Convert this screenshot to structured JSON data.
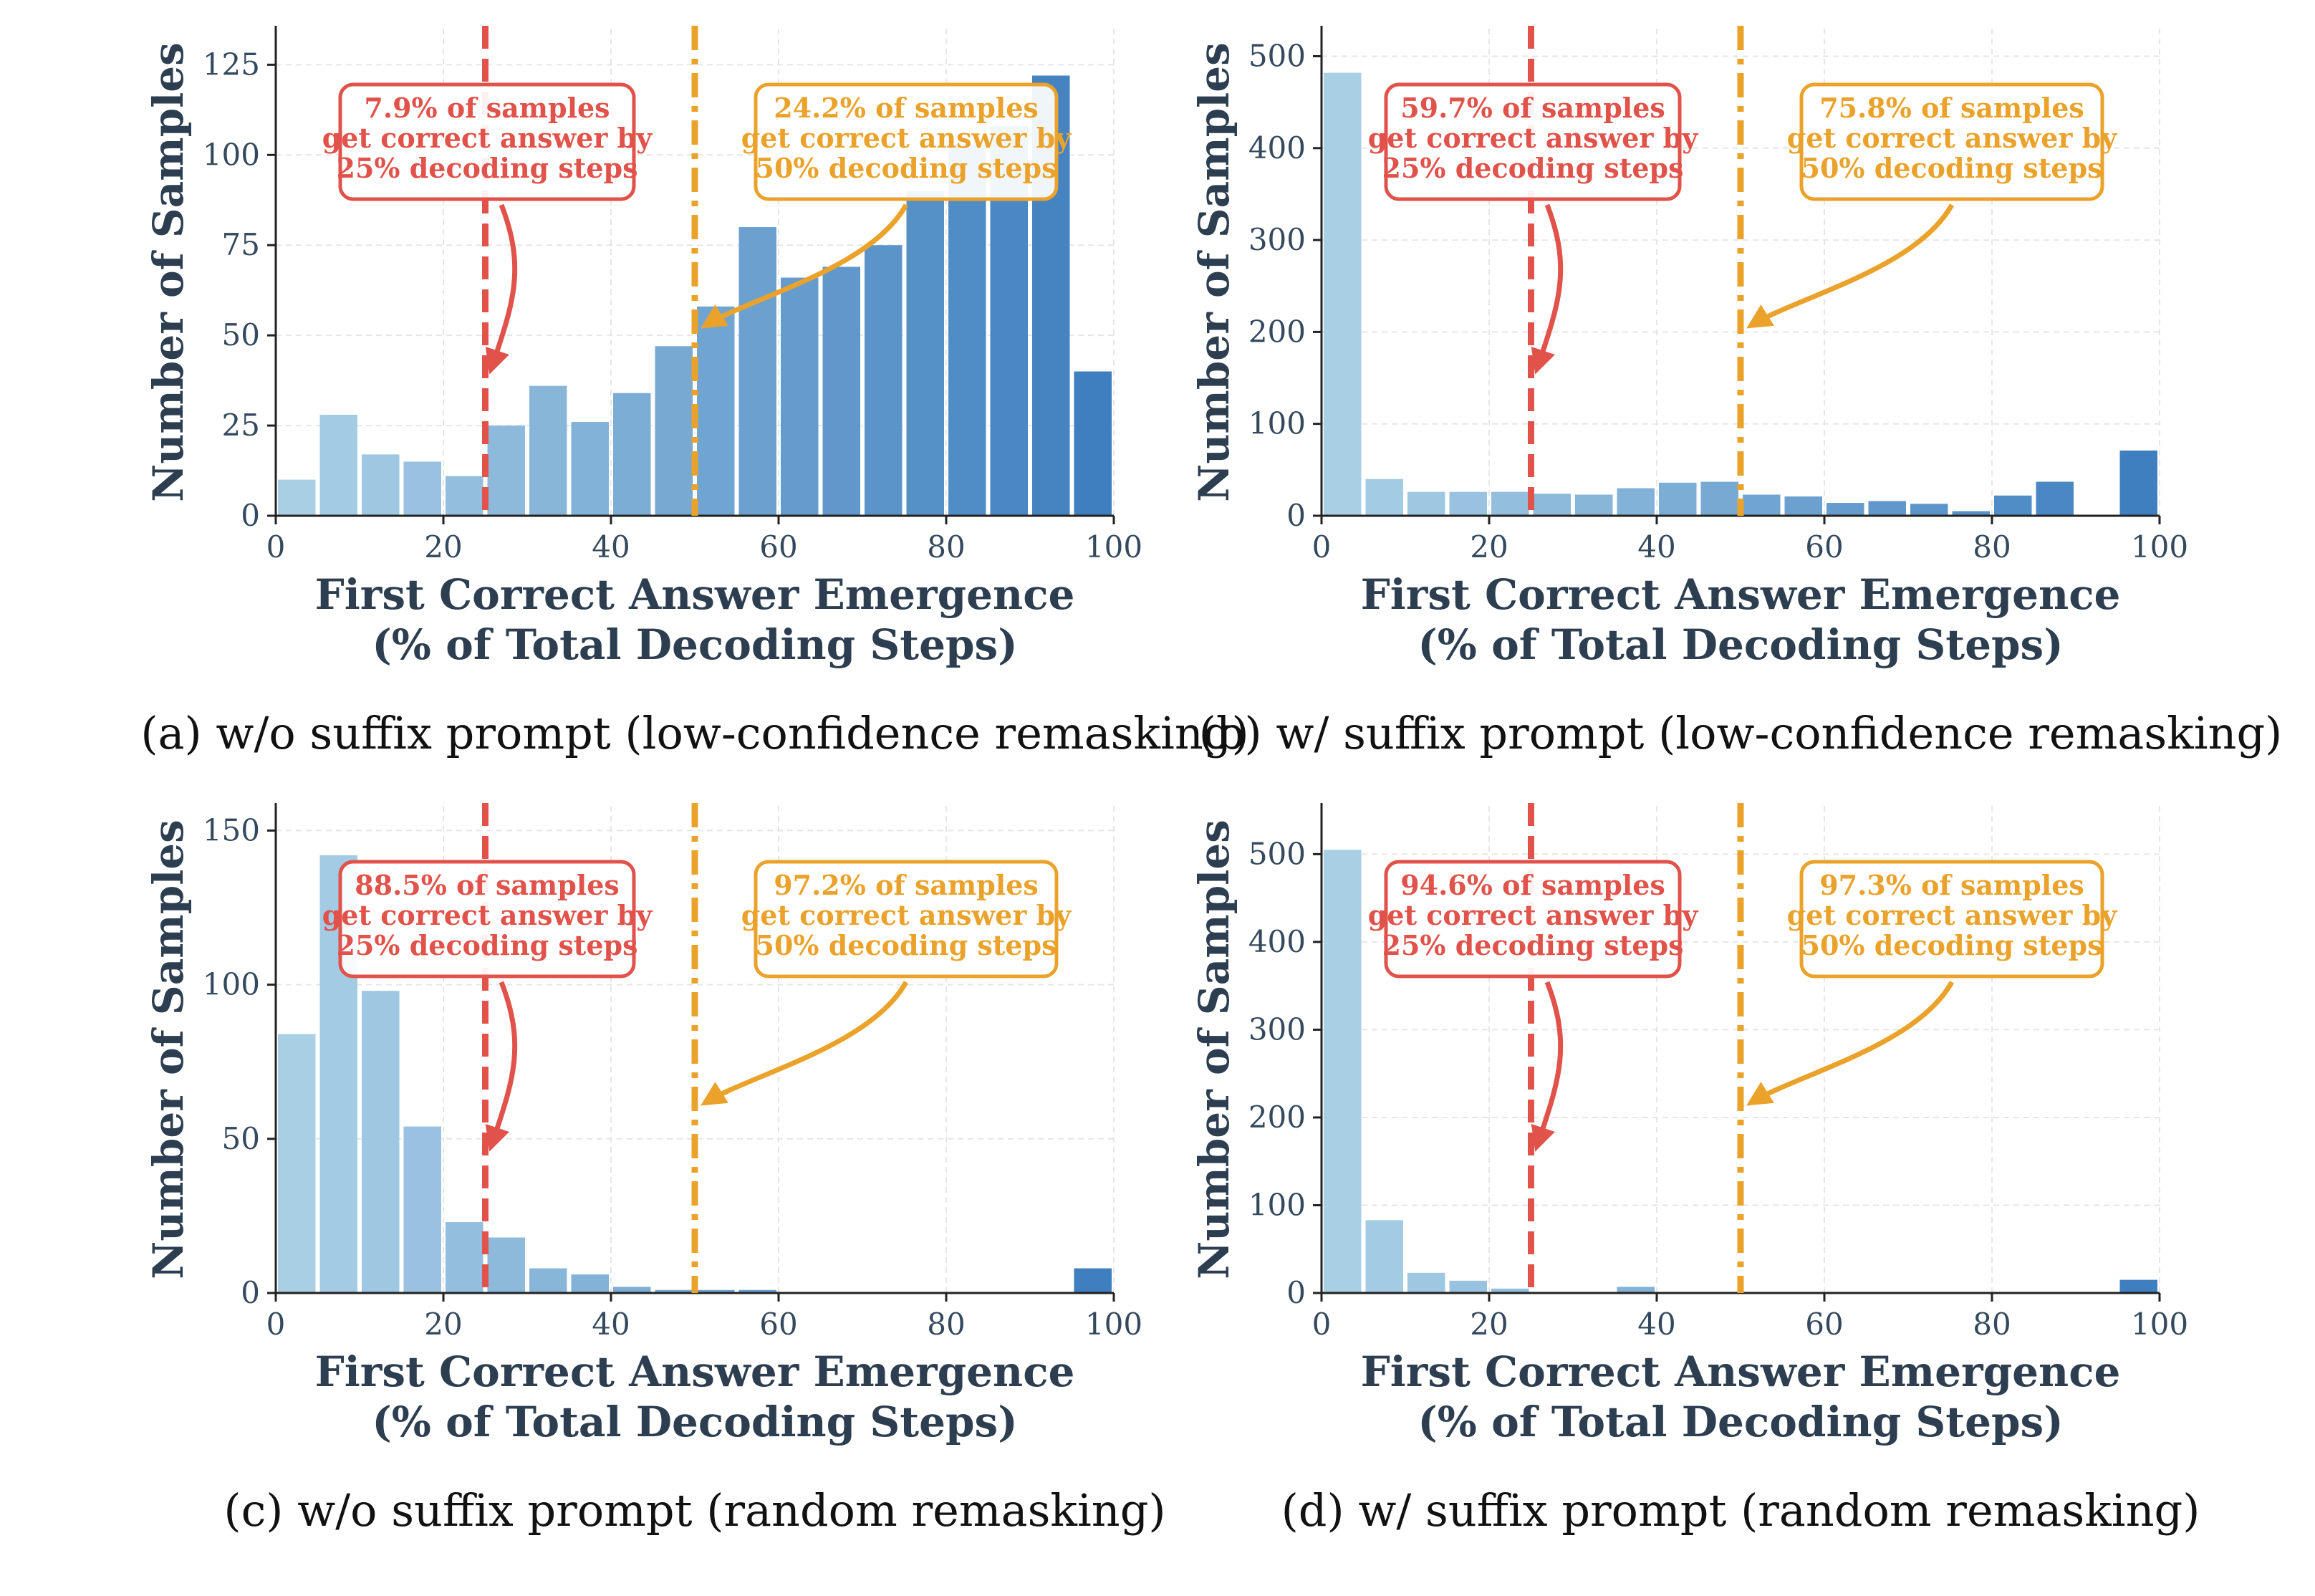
{
  "colors": {
    "marker25": "#e0524a",
    "marker50": "#eaa22b",
    "axis": "#222222",
    "grid": "#e6e6e6",
    "text": "#2c3e50",
    "bar_light": "#a9cfe5",
    "bar_dark": "#3f7fbf"
  },
  "chart_data": [
    {
      "type": "bar",
      "caption": "(a) w/o suffix prompt (low-confidence remasking)",
      "xlabel": [
        "First Correct Answer Emergence",
        "(% of Total Decoding Steps)"
      ],
      "ylabel": "Number of Samples",
      "xlim": [
        0,
        100
      ],
      "ylim": [
        0,
        135
      ],
      "xticks": [
        0,
        20,
        40,
        60,
        80,
        100
      ],
      "yticks": [
        0,
        25,
        50,
        75,
        100,
        125
      ],
      "grid": true,
      "bin_width": 5,
      "bins": [
        0,
        5,
        10,
        15,
        20,
        25,
        30,
        35,
        40,
        45,
        50,
        55,
        60,
        65,
        70,
        75,
        80,
        85,
        90,
        95
      ],
      "values": [
        10,
        28,
        17,
        15,
        11,
        25,
        36,
        26,
        34,
        47,
        58,
        80,
        66,
        69,
        75,
        90,
        103,
        108,
        122,
        40
      ],
      "markers": [
        {
          "x": 25,
          "style": "dashed",
          "color_key": "marker25",
          "annotation": [
            "7.9% of samples",
            "get correct answer by",
            "25% decoding steps"
          ]
        },
        {
          "x": 50,
          "style": "dashdot",
          "color_key": "marker50",
          "annotation": [
            "24.2% of samples",
            "get correct answer by",
            "50% decoding steps"
          ]
        }
      ]
    },
    {
      "type": "bar",
      "caption": "(b) w/ suffix prompt (low-confidence remasking)",
      "xlabel": [
        "First Correct Answer Emergence",
        "(% of Total Decoding Steps)"
      ],
      "ylabel": "Number of Samples",
      "xlim": [
        0,
        100
      ],
      "ylim": [
        0,
        530
      ],
      "xticks": [
        0,
        20,
        40,
        60,
        80,
        100
      ],
      "yticks": [
        0,
        100,
        200,
        300,
        400,
        500
      ],
      "grid": true,
      "bin_width": 5,
      "bins": [
        0,
        5,
        10,
        15,
        20,
        25,
        30,
        35,
        40,
        45,
        50,
        55,
        60,
        65,
        70,
        75,
        80,
        85,
        90,
        95
      ],
      "values": [
        482,
        40,
        26,
        26,
        26,
        24,
        23,
        30,
        36,
        37,
        23,
        21,
        14,
        16,
        13,
        5,
        22,
        37,
        0,
        71
      ],
      "markers": [
        {
          "x": 25,
          "style": "dashed",
          "color_key": "marker25",
          "annotation": [
            "59.7% of samples",
            "get correct answer by",
            "25% decoding steps"
          ]
        },
        {
          "x": 50,
          "style": "dashdot",
          "color_key": "marker50",
          "annotation": [
            "75.8% of samples",
            "get correct answer by",
            "50% decoding steps"
          ]
        }
      ]
    },
    {
      "type": "bar",
      "caption": "(c) w/o suffix prompt (random remasking)",
      "xlabel": [
        "First Correct Answer Emergence",
        "(% of Total Decoding Steps)"
      ],
      "ylabel": "Number of Samples",
      "xlim": [
        0,
        100
      ],
      "ylim": [
        0,
        158
      ],
      "xticks": [
        0,
        20,
        40,
        60,
        80,
        100
      ],
      "yticks": [
        0,
        50,
        100,
        150
      ],
      "grid": true,
      "bin_width": 5,
      "bins": [
        0,
        5,
        10,
        15,
        20,
        25,
        30,
        35,
        40,
        45,
        50,
        55,
        60,
        65,
        70,
        75,
        80,
        85,
        90,
        95
      ],
      "values": [
        84,
        142,
        98,
        54,
        23,
        18,
        8,
        6,
        2,
        1,
        1,
        1,
        0,
        0,
        0,
        0,
        0,
        0,
        0,
        8
      ],
      "markers": [
        {
          "x": 25,
          "style": "dashed",
          "color_key": "marker25",
          "annotation": [
            "88.5% of samples",
            "get correct answer by",
            "25% decoding steps"
          ]
        },
        {
          "x": 50,
          "style": "dashdot",
          "color_key": "marker50",
          "annotation": [
            "97.2% of samples",
            "get correct answer by",
            "50% decoding steps"
          ]
        }
      ]
    },
    {
      "type": "bar",
      "caption": "(d) w/ suffix prompt (random remasking)",
      "xlabel": [
        "First Correct Answer Emergence",
        "(% of Total Decoding Steps)"
      ],
      "ylabel": "Number of Samples",
      "xlim": [
        0,
        100
      ],
      "ylim": [
        0,
        555
      ],
      "xticks": [
        0,
        20,
        40,
        60,
        80,
        100
      ],
      "yticks": [
        0,
        100,
        200,
        300,
        400,
        500
      ],
      "grid": true,
      "bin_width": 5,
      "bins": [
        0,
        5,
        10,
        15,
        20,
        25,
        30,
        35,
        40,
        45,
        50,
        55,
        60,
        65,
        70,
        75,
        80,
        85,
        90,
        95
      ],
      "values": [
        505,
        83,
        23,
        14,
        5,
        0,
        0,
        7,
        0,
        0,
        0,
        0,
        0,
        0,
        0,
        0,
        0,
        0,
        0,
        15
      ],
      "markers": [
        {
          "x": 25,
          "style": "dashed",
          "color_key": "marker25",
          "annotation": [
            "94.6% of samples",
            "get correct answer by",
            "25% decoding steps"
          ]
        },
        {
          "x": 50,
          "style": "dashdot",
          "color_key": "marker50",
          "annotation": [
            "97.3% of samples",
            "get correct answer by",
            "50% decoding steps"
          ]
        }
      ]
    }
  ]
}
